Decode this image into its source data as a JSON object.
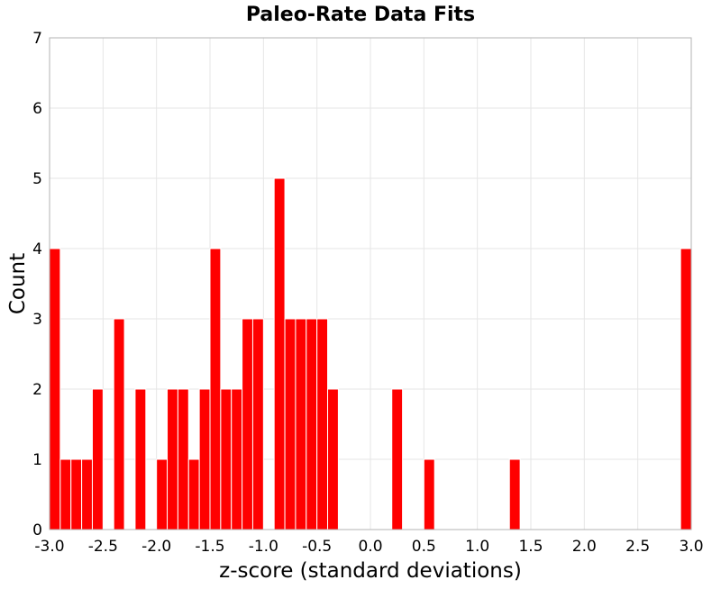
{
  "chart_data": {
    "type": "bar",
    "title": "Paleo-Rate Data Fits",
    "xlabel": "z-score (standard deviations)",
    "ylabel": "Count",
    "xlim": [
      -3.0,
      3.0
    ],
    "ylim": [
      0,
      7
    ],
    "x_ticks": [
      "-3.0",
      "-2.5",
      "-2.0",
      "-1.5",
      "-1.0",
      "-0.5",
      "0.0",
      "0.5",
      "1.0",
      "1.5",
      "2.0",
      "2.5",
      "3.0"
    ],
    "y_ticks": [
      "0",
      "1",
      "2",
      "3",
      "4",
      "5",
      "6",
      "7"
    ],
    "bin_width": 0.1,
    "bins": [
      {
        "x": -2.95,
        "count": 4
      },
      {
        "x": -2.85,
        "count": 1
      },
      {
        "x": -2.75,
        "count": 1
      },
      {
        "x": -2.65,
        "count": 1
      },
      {
        "x": -2.55,
        "count": 2
      },
      {
        "x": -2.35,
        "count": 3
      },
      {
        "x": -2.15,
        "count": 2
      },
      {
        "x": -1.95,
        "count": 1
      },
      {
        "x": -1.85,
        "count": 2
      },
      {
        "x": -1.75,
        "count": 2
      },
      {
        "x": -1.65,
        "count": 1
      },
      {
        "x": -1.55,
        "count": 2
      },
      {
        "x": -1.45,
        "count": 4
      },
      {
        "x": -1.35,
        "count": 2
      },
      {
        "x": -1.25,
        "count": 2
      },
      {
        "x": -1.15,
        "count": 3
      },
      {
        "x": -1.05,
        "count": 3
      },
      {
        "x": -0.85,
        "count": 5
      },
      {
        "x": -0.75,
        "count": 3
      },
      {
        "x": -0.65,
        "count": 3
      },
      {
        "x": -0.55,
        "count": 3
      },
      {
        "x": -0.45,
        "count": 3
      },
      {
        "x": -0.35,
        "count": 2
      },
      {
        "x": 0.25,
        "count": 2
      },
      {
        "x": 0.55,
        "count": 1
      },
      {
        "x": 1.35,
        "count": 1
      },
      {
        "x": 2.95,
        "count": 4
      }
    ],
    "grid": true,
    "bar_color": "#ff0000",
    "bar_edge_color": "#ffffff",
    "grid_color": "#e6e6e6",
    "frame_color": "#b3b3b3"
  }
}
